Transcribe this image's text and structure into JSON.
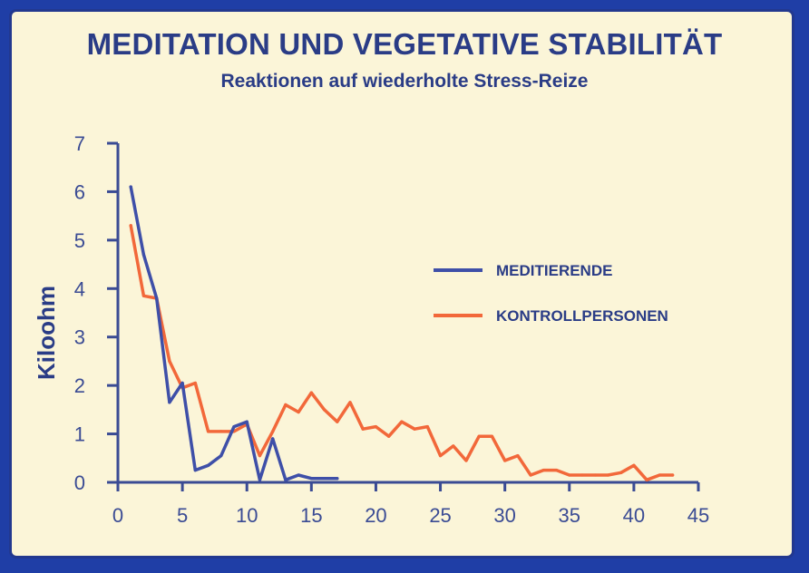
{
  "colors": {
    "background_outer": "#1f3ea6",
    "panel": "#fbf5d8",
    "axis": "#3a4b94",
    "meditierende": "#3e4fa8",
    "kontrollpersonen": "#f2683a"
  },
  "chart_data": {
    "type": "line",
    "title": "MEDITATION UND VEGETATIVE STABILITÄT",
    "subtitle": "Reaktionen auf wiederholte Stress-Reize",
    "xlabel": "",
    "ylabel": "Kiloohm",
    "xlim": [
      0,
      45
    ],
    "ylim": [
      0,
      7
    ],
    "xticks": [
      0,
      5,
      10,
      15,
      20,
      25,
      30,
      35,
      40,
      45
    ],
    "yticks": [
      0,
      1,
      2,
      3,
      4,
      5,
      6,
      7
    ],
    "legend_position": "right",
    "series": [
      {
        "name": "MEDITIERENDE",
        "color": "#3e4fa8",
        "x": [
          1,
          2,
          3,
          4,
          5,
          6,
          7,
          8,
          9,
          10,
          11,
          12,
          13,
          14,
          15,
          16,
          17
        ],
        "y": [
          6.1,
          4.7,
          3.8,
          1.65,
          2.05,
          0.25,
          0.35,
          0.55,
          1.15,
          1.25,
          0.05,
          0.9,
          0.05,
          0.15,
          0.08,
          0.08,
          0.08
        ]
      },
      {
        "name": "KONTROLLPERSONEN",
        "color": "#f2683a",
        "x": [
          1,
          2,
          3,
          4,
          5,
          6,
          7,
          8,
          9,
          10,
          11,
          12,
          13,
          14,
          15,
          16,
          17,
          18,
          19,
          20,
          21,
          22,
          23,
          24,
          25,
          26,
          27,
          28,
          29,
          30,
          31,
          32,
          33,
          34,
          35,
          36,
          37,
          38,
          39,
          40,
          41,
          42,
          43
        ],
        "y": [
          5.3,
          3.85,
          3.8,
          2.5,
          1.95,
          2.05,
          1.05,
          1.05,
          1.05,
          1.2,
          0.55,
          1.05,
          1.6,
          1.45,
          1.85,
          1.5,
          1.25,
          1.65,
          1.1,
          1.15,
          0.95,
          1.25,
          1.1,
          1.15,
          0.55,
          0.75,
          0.45,
          0.95,
          0.95,
          0.45,
          0.55,
          0.15,
          0.25,
          0.25,
          0.15,
          0.15,
          0.15,
          0.15,
          0.2,
          0.35,
          0.05,
          0.15,
          0.15
        ]
      }
    ]
  }
}
